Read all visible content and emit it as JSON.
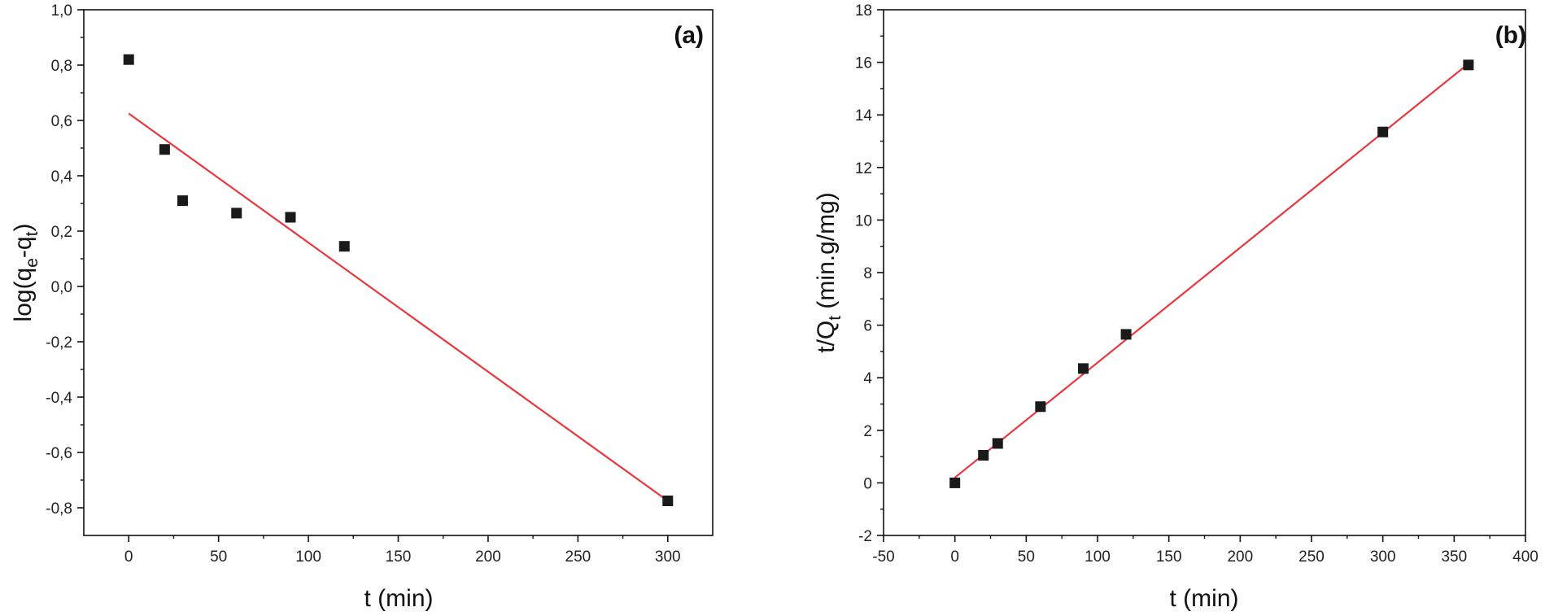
{
  "chart_data": [
    {
      "type": "scatter",
      "panel_label": "(a)",
      "title": "",
      "xlabel": "t (min)",
      "ylabel": {
        "prefix": "log(q",
        "sub1": "e",
        "mid": "-q",
        "sub2": "t",
        "suffix": ")"
      },
      "xlim": [
        -25,
        325
      ],
      "ylim": [
        -0.9,
        1.0
      ],
      "xticks": [
        0,
        50,
        100,
        150,
        200,
        250,
        300
      ],
      "xtick_labels": [
        "0",
        "50",
        "100",
        "150",
        "200",
        "250",
        "300"
      ],
      "yticks": [
        -0.8,
        -0.6,
        -0.4,
        -0.2,
        0.0,
        0.2,
        0.4,
        0.6,
        0.8,
        1.0
      ],
      "ytick_labels": [
        "-0,8",
        "-0,6",
        "-0,4",
        "-0,2",
        "0,0",
        "0,2",
        "0,4",
        "0,6",
        "0,8",
        "1,0"
      ],
      "points": {
        "x": [
          0,
          20,
          30,
          60,
          90,
          120,
          300
        ],
        "y": [
          0.82,
          0.495,
          0.31,
          0.265,
          0.25,
          0.145,
          -0.775
        ]
      },
      "fit_line": {
        "x": [
          0,
          300
        ],
        "y": [
          0.625,
          -0.775
        ]
      },
      "marker_color": "#1a1a1a",
      "line_color": "#e8373e"
    },
    {
      "type": "scatter",
      "panel_label": "(b)",
      "title": "",
      "xlabel": "t (min)",
      "ylabel": {
        "prefix": "t/Q",
        "sub": "t",
        "suffix": " (min.g/mg)"
      },
      "xlim": [
        -50,
        400
      ],
      "ylim": [
        -2,
        18
      ],
      "xticks": [
        -50,
        0,
        50,
        100,
        150,
        200,
        250,
        300,
        350,
        400
      ],
      "xtick_labels": [
        "-50",
        "0",
        "50",
        "100",
        "150",
        "200",
        "250",
        "300",
        "350",
        "400"
      ],
      "yticks": [
        -2,
        0,
        2,
        4,
        6,
        8,
        10,
        12,
        14,
        16,
        18
      ],
      "ytick_labels": [
        "-2",
        "0",
        "2",
        "4",
        "6",
        "8",
        "10",
        "12",
        "14",
        "16",
        "18"
      ],
      "points": {
        "x": [
          0,
          20,
          30,
          60,
          90,
          120,
          300,
          360
        ],
        "y": [
          0.0,
          1.05,
          1.5,
          2.9,
          4.35,
          5.65,
          13.35,
          15.9
        ]
      },
      "fit_line": {
        "x": [
          0,
          360
        ],
        "y": [
          0.2,
          15.95
        ]
      },
      "marker_color": "#1a1a1a",
      "line_color": "#e8373e"
    }
  ]
}
